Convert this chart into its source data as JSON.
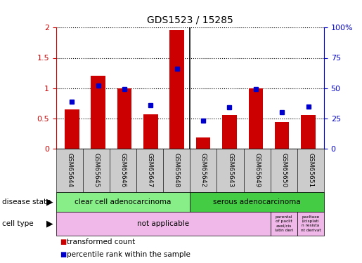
{
  "title": "GDS1523 / 15285",
  "samples": [
    "GSM65644",
    "GSM65645",
    "GSM65646",
    "GSM65647",
    "GSM65648",
    "GSM65642",
    "GSM65643",
    "GSM65649",
    "GSM65650",
    "GSM65651"
  ],
  "transformed_counts": [
    0.65,
    1.2,
    1.0,
    0.57,
    1.96,
    0.18,
    0.55,
    1.0,
    0.44,
    0.55
  ],
  "percentile_ranks_pct": [
    39,
    52,
    49,
    36,
    66,
    23,
    34,
    49,
    30,
    35
  ],
  "bar_color": "#cc0000",
  "dot_color": "#0000cc",
  "ylim_left": [
    0,
    2
  ],
  "ylim_right": [
    0,
    100
  ],
  "yticks_left": [
    0,
    0.5,
    1.0,
    1.5,
    2.0
  ],
  "ytick_labels_left": [
    "0",
    "0.5",
    "1",
    "1.5",
    "2"
  ],
  "ytick_labels_right": [
    "0",
    "25",
    "50",
    "75",
    "100%"
  ],
  "disease_state_label": "disease state",
  "cell_type_label": "cell type",
  "disease_group1_label": "clear cell adenocarcinoma",
  "disease_group1_color": "#88ee88",
  "disease_group1_cols": 5,
  "disease_group2_label": "serous adenocarcinoma",
  "disease_group2_color": "#44cc44",
  "disease_group2_cols": 5,
  "cell_type_main_label": "not applicable",
  "cell_type_main_color": "#f0b8e8",
  "cell_type_main_cols": 8,
  "cell_type_col9_text": "parental\nof paclit\naxel/cis\nlatin deri",
  "cell_type_col10_text": "pacltaxe\nl/cisplati\nn resista\nnt derivat",
  "cell_type_extra_color": "#f0b8e8",
  "legend_count_label": "transformed count",
  "legend_pct_label": "percentile rank within the sample",
  "left_axis_color": "#cc0000",
  "right_axis_color": "#0000cc",
  "sample_box_color": "#cccccc"
}
